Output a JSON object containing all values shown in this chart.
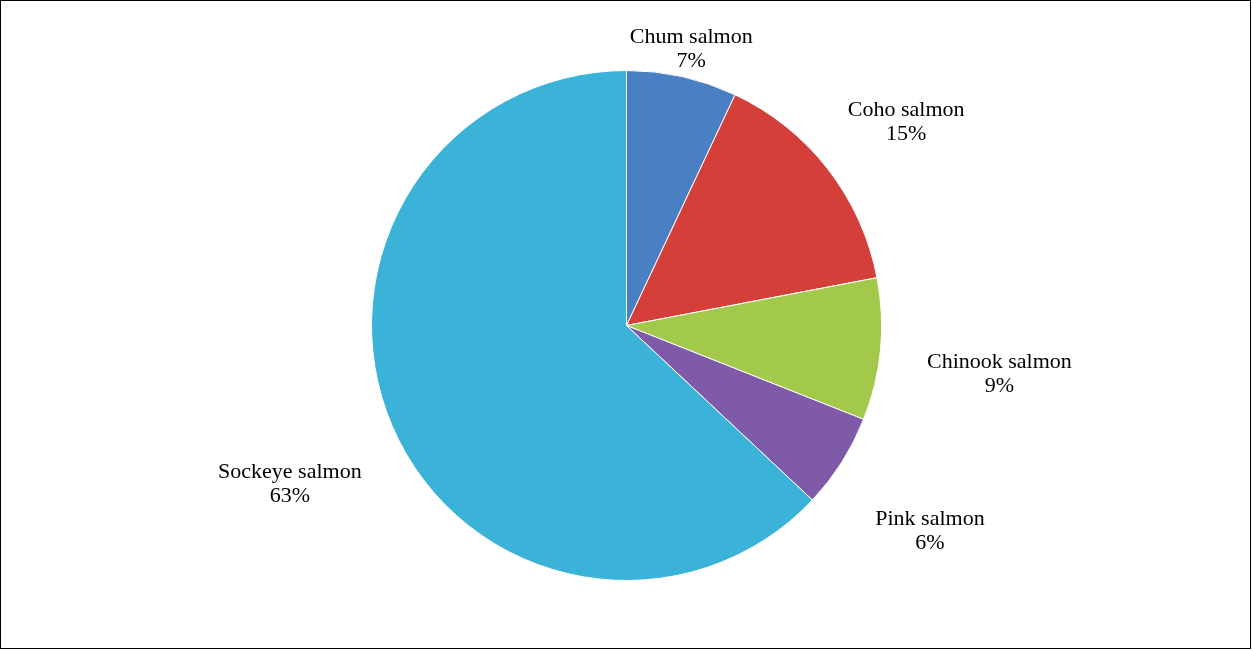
{
  "chart_data": {
    "type": "pie",
    "categories": [
      "Chum salmon",
      "Coho salmon",
      "Chinook salmon",
      "Pink salmon",
      "Sockeye salmon"
    ],
    "values": [
      7,
      15,
      9,
      6,
      63
    ],
    "colors": [
      "#4a7fc4",
      "#d43f3a",
      "#a3c94a",
      "#7e5aa8",
      "#3bb3d8"
    ],
    "value_labels": [
      "7%",
      "15%",
      "9%",
      "6%",
      "63%"
    ]
  }
}
